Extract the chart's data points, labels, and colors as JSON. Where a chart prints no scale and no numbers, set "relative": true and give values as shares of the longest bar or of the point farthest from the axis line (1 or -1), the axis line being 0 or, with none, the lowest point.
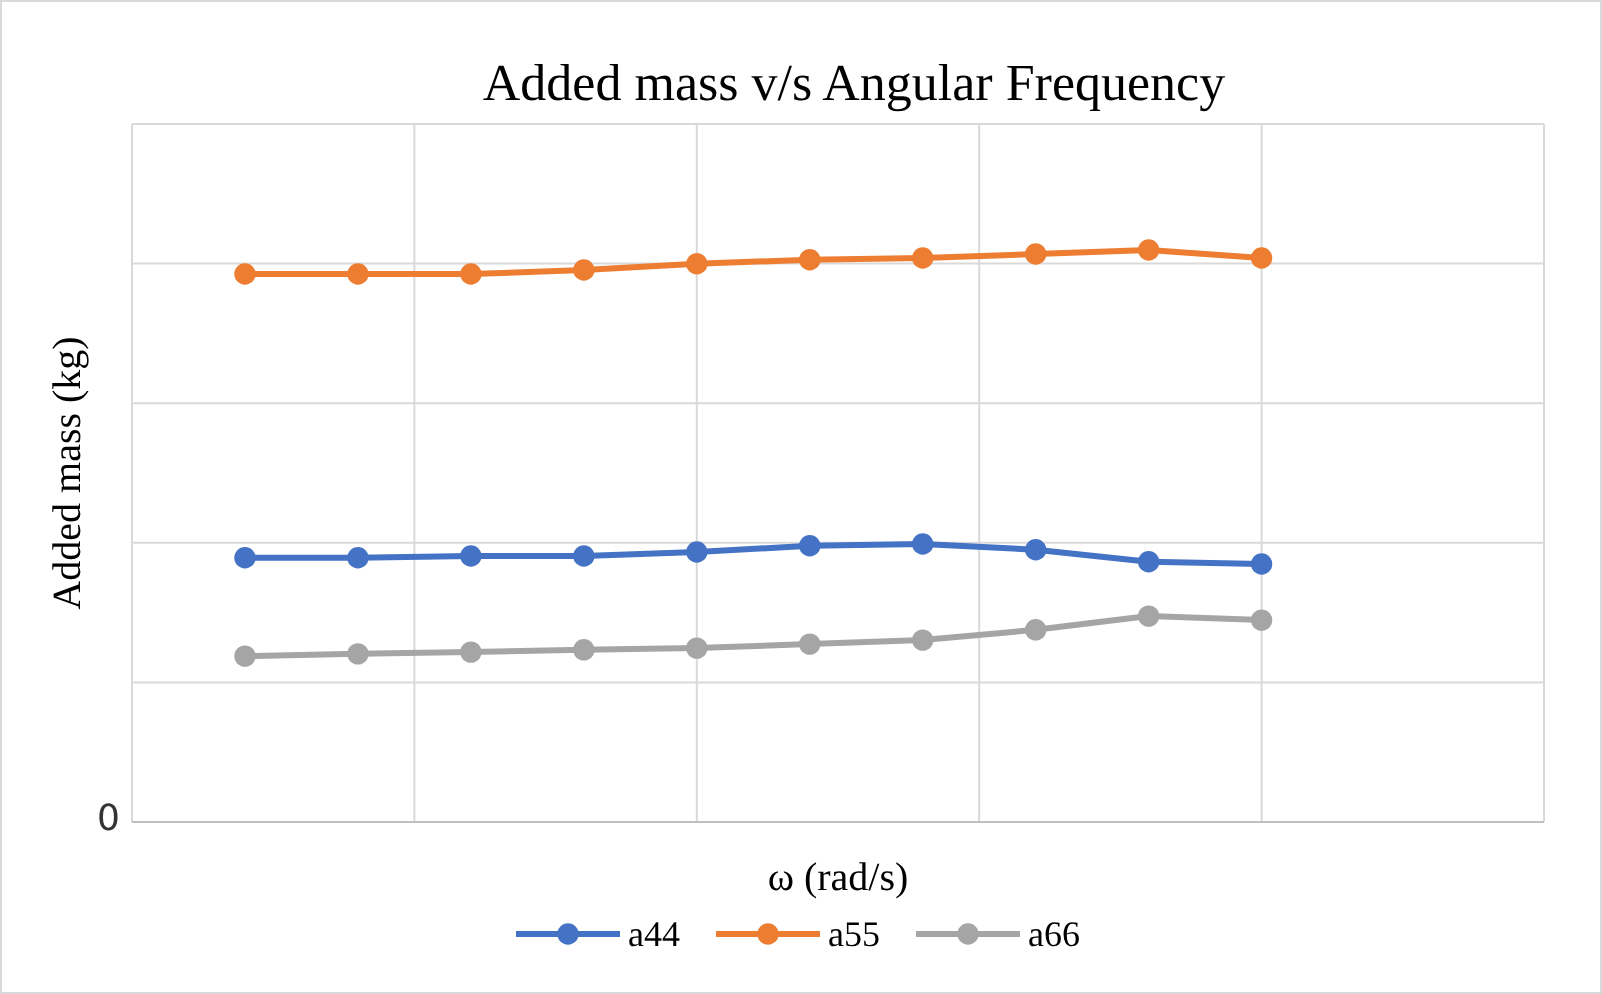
{
  "chart_data": {
    "type": "line",
    "title": "Added mass v/s Angular Frequency",
    "xlabel": "ω (rad/s)",
    "ylabel": "Added  mass (kg)",
    "relative": true,
    "grid": true,
    "legend": "bottom",
    "marker": "circle",
    "line_style": "solid",
    "annotations": [
      "0"
    ],
    "categories": [
      null,
      null,
      null,
      null,
      null,
      null,
      null,
      null,
      null,
      null
    ],
    "series": [
      {
        "name": "a44",
        "color": "#4472c4",
        "values": [
          0.462,
          0.462,
          0.465,
          0.465,
          0.472,
          0.483,
          0.486,
          0.476,
          0.455,
          0.451
        ]
      },
      {
        "name": "a55",
        "color": "#ed7d31",
        "values": [
          0.958,
          0.958,
          0.958,
          0.965,
          0.976,
          0.983,
          0.986,
          0.993,
          1,
          0.986
        ]
      },
      {
        "name": "a66",
        "color": "#a5a5a5",
        "values": [
          0.29,
          0.294,
          0.297,
          0.301,
          0.304,
          0.311,
          0.318,
          0.336,
          0.36,
          0.353
        ]
      }
    ]
  }
}
